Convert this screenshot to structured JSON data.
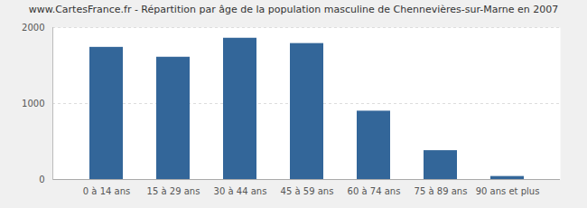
{
  "chart_data": {
    "type": "bar",
    "title": "www.CartesFrance.fr - Répartition par âge de la population masculine de Chennevières-sur-Marne en 2007",
    "categories": [
      "0 à 14 ans",
      "15 à 29 ans",
      "30 à 44 ans",
      "45 à 59 ans",
      "60 à 74 ans",
      "75 à 89 ans",
      "90 ans et plus"
    ],
    "values": [
      1740,
      1610,
      1860,
      1790,
      900,
      380,
      40
    ],
    "color": "#336699",
    "ylim": [
      0,
      2000
    ],
    "yticks": [
      0,
      1000,
      2000
    ],
    "grid": true
  }
}
